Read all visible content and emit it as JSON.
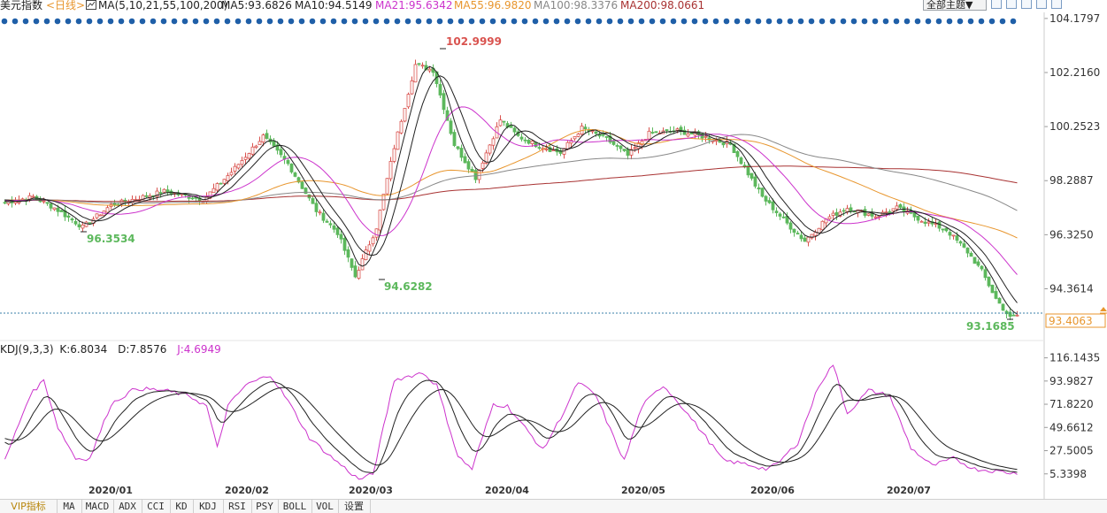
{
  "header": {
    "symbol": "美元指数",
    "period": "<日线>",
    "ma_label": "MA(5,10,21,55,100,200)",
    "ma5": "MA5:93.6826",
    "ma10": "MA10:94.5149",
    "ma21": "MA21:95.6342",
    "ma55": "MA55:96.9820",
    "ma100": "MA100:98.3376",
    "ma200": "MA200:98.0661",
    "theme_button": "全部主题▼"
  },
  "colors": {
    "up": "#d9534f",
    "down": "#5cb85c",
    "ma5": "#222222",
    "ma10": "#222222",
    "ma21": "#cc33cc",
    "ma55": "#e8962e",
    "ma100": "#888888",
    "ma200": "#a83232",
    "dots": "#1f5fa8",
    "axis_text": "#333333"
  },
  "price_axis": [
    "104.1797",
    "102.2160",
    "100.2523",
    "98.2887",
    "96.3250",
    "94.3614"
  ],
  "current_price": "93.4063",
  "annotations": {
    "high": "102.9999",
    "low_jan": "96.3534",
    "low_mar": "94.6282",
    "low_jul": "93.1685"
  },
  "kdj": {
    "label": "KDJ(9,3,3)",
    "k": "K:6.8034",
    "d": "D:7.8576",
    "j": "J:4.6949",
    "axis": [
      "116.1435",
      "93.9827",
      "71.8220",
      "49.6612",
      "27.5005",
      "5.3398"
    ]
  },
  "x_axis": [
    "2020/01",
    "2020/02",
    "2020/03",
    "2020/04",
    "2020/05",
    "2020/06",
    "2020/07"
  ],
  "tabs": [
    "VIP指标",
    "MA",
    "MACD",
    "ADX",
    "CCI",
    "KD",
    "KDJ",
    "RSI",
    "PSY",
    "BOLL",
    "VOL",
    "设置"
  ],
  "chart_data": {
    "type": "candlestick",
    "price_range": [
      92.9,
      104.4
    ],
    "kdj_range": [
      -5,
      120
    ],
    "anchors": [
      [
        0,
        97.5
      ],
      [
        8,
        97.7
      ],
      [
        14,
        97.3
      ],
      [
        22,
        96.6
      ],
      [
        30,
        97.4
      ],
      [
        45,
        97.9
      ],
      [
        56,
        97.6
      ],
      [
        64,
        98.6
      ],
      [
        73,
        99.9
      ],
      [
        80,
        98.9
      ],
      [
        88,
        97.2
      ],
      [
        94,
        96.4
      ],
      [
        99,
        94.8
      ],
      [
        105,
        96.6
      ],
      [
        110,
        99.5
      ],
      [
        116,
        102.5
      ],
      [
        121,
        102.3
      ],
      [
        127,
        99.6
      ],
      [
        133,
        98.4
      ],
      [
        140,
        100.5
      ],
      [
        145,
        99.9
      ],
      [
        150,
        99.6
      ],
      [
        157,
        99.3
      ],
      [
        163,
        100.2
      ],
      [
        170,
        99.8
      ],
      [
        176,
        99.2
      ],
      [
        182,
        100.0
      ],
      [
        190,
        100.1
      ],
      [
        197,
        99.9
      ],
      [
        205,
        99.6
      ],
      [
        214,
        97.7
      ],
      [
        222,
        96.6
      ],
      [
        226,
        96.1
      ],
      [
        232,
        96.9
      ],
      [
        238,
        97.3
      ],
      [
        246,
        97.0
      ],
      [
        252,
        97.3
      ],
      [
        260,
        96.8
      ],
      [
        266,
        96.5
      ],
      [
        272,
        95.7
      ],
      [
        276,
        95.0
      ],
      [
        280,
        94.0
      ],
      [
        284,
        93.3
      ],
      [
        286,
        93.4
      ]
    ],
    "kdj_anchors": [
      [
        0,
        18
      ],
      [
        7,
        80
      ],
      [
        11,
        95
      ],
      [
        15,
        50
      ],
      [
        20,
        20
      ],
      [
        24,
        20
      ],
      [
        30,
        72
      ],
      [
        37,
        87
      ],
      [
        45,
        85
      ],
      [
        52,
        80
      ],
      [
        57,
        70
      ],
      [
        60,
        30
      ],
      [
        63,
        70
      ],
      [
        68,
        90
      ],
      [
        75,
        100
      ],
      [
        80,
        75
      ],
      [
        86,
        40
      ],
      [
        92,
        22
      ],
      [
        100,
        0
      ],
      [
        104,
        5
      ],
      [
        110,
        95
      ],
      [
        118,
        102
      ],
      [
        122,
        90
      ],
      [
        128,
        22
      ],
      [
        132,
        10
      ],
      [
        138,
        72
      ],
      [
        142,
        70
      ],
      [
        148,
        45
      ],
      [
        152,
        28
      ],
      [
        158,
        65
      ],
      [
        162,
        93
      ],
      [
        167,
        80
      ],
      [
        172,
        40
      ],
      [
        175,
        18
      ],
      [
        180,
        70
      ],
      [
        186,
        90
      ],
      [
        190,
        75
      ],
      [
        197,
        45
      ],
      [
        203,
        18
      ],
      [
        209,
        15
      ],
      [
        215,
        10
      ],
      [
        218,
        14
      ],
      [
        224,
        35
      ],
      [
        230,
        90
      ],
      [
        234,
        110
      ],
      [
        238,
        63
      ],
      [
        244,
        85
      ],
      [
        250,
        80
      ],
      [
        256,
        30
      ],
      [
        262,
        13
      ],
      [
        268,
        20
      ],
      [
        274,
        10
      ],
      [
        280,
        8
      ],
      [
        285,
        6
      ]
    ]
  }
}
